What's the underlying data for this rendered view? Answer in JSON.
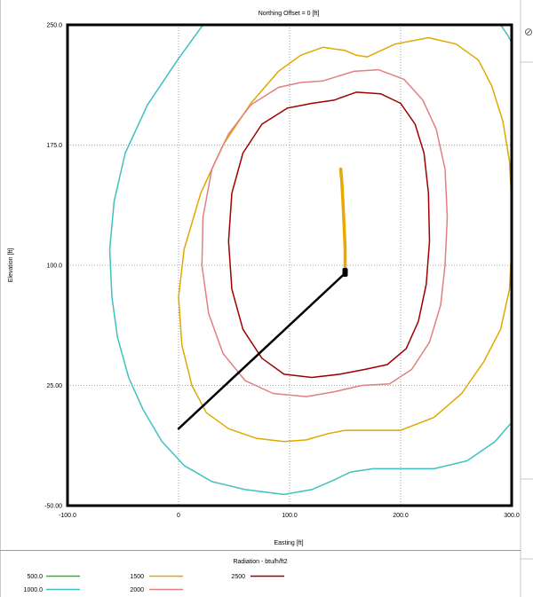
{
  "chart_data": {
    "type": "line",
    "title": "Northing Offset = 0 [ft]",
    "xlabel": "Easting [ft]",
    "ylabel": "Elevation [ft]",
    "xlim": [
      -100,
      300
    ],
    "ylim": [
      -50,
      250
    ],
    "x_ticks": [
      "-100.0",
      "0",
      "100.0",
      "200.0",
      "300.0"
    ],
    "y_ticks": [
      "250.0",
      "175.0",
      "100.0",
      "25.00",
      "-50.00"
    ],
    "x_tick_values": [
      -100,
      0,
      100,
      200,
      300
    ],
    "y_tick_values": [
      250,
      175,
      100,
      25,
      -50
    ],
    "grid": true,
    "legend": {
      "title": "Radiation - btu/h/ft2",
      "entries": [
        {
          "label": "500.0",
          "color": "#2eb82e"
        },
        {
          "label": "1000.0",
          "color": "#40c0c0"
        },
        {
          "label": "1500",
          "color": "#e0a800"
        },
        {
          "label": "2000",
          "color": "#e08080"
        },
        {
          "label": "2500",
          "color": "#a00000"
        }
      ]
    },
    "series": [
      {
        "label": "1000.0",
        "color": "#40c0c0",
        "points": [
          [
            22,
            250
          ],
          [
            0,
            229
          ],
          [
            -28,
            200
          ],
          [
            -48,
            170
          ],
          [
            -58,
            140
          ],
          [
            -62,
            110
          ],
          [
            -60,
            80
          ],
          [
            -55,
            55
          ],
          [
            -45,
            30
          ],
          [
            -32,
            10
          ],
          [
            -15,
            -10
          ],
          [
            5,
            -25
          ],
          [
            30,
            -35
          ],
          [
            60,
            -40
          ],
          [
            95,
            -43
          ],
          [
            120,
            -40
          ],
          [
            140,
            -34
          ],
          [
            155,
            -29
          ],
          [
            175,
            -27
          ],
          [
            200,
            -27
          ],
          [
            230,
            -27
          ],
          [
            260,
            -22
          ],
          [
            285,
            -10
          ],
          [
            300,
            2
          ]
        ]
      },
      {
        "label": "1000.0",
        "color": "#40c0c0",
        "points": [
          [
            290,
            250
          ],
          [
            296,
            244
          ],
          [
            300,
            239
          ]
        ]
      },
      {
        "label": "1500",
        "color": "#e0a800",
        "points": [
          [
            300,
            140
          ],
          [
            298,
            165
          ],
          [
            292,
            190
          ],
          [
            282,
            212
          ],
          [
            270,
            228
          ],
          [
            250,
            238
          ],
          [
            225,
            242
          ],
          [
            195,
            238
          ],
          [
            170,
            230
          ],
          [
            160,
            231
          ],
          [
            150,
            234
          ],
          [
            130,
            236
          ],
          [
            110,
            231
          ],
          [
            90,
            221
          ],
          [
            65,
            201
          ],
          [
            40,
            175
          ],
          [
            20,
            145
          ],
          [
            5,
            110
          ],
          [
            0,
            80
          ],
          [
            3,
            50
          ],
          [
            12,
            25
          ],
          [
            25,
            8
          ],
          [
            45,
            -2
          ],
          [
            70,
            -8
          ],
          [
            95,
            -10
          ],
          [
            115,
            -9
          ],
          [
            135,
            -5
          ],
          [
            150,
            -3
          ],
          [
            170,
            -3
          ],
          [
            200,
            -3
          ],
          [
            230,
            5
          ],
          [
            255,
            20
          ],
          [
            275,
            40
          ],
          [
            290,
            60
          ],
          [
            298,
            85
          ],
          [
            300,
            110
          ]
        ]
      },
      {
        "label": "2000",
        "color": "#e08080",
        "points": [
          [
            130,
            215
          ],
          [
            158,
            221
          ],
          [
            180,
            222
          ],
          [
            203,
            216
          ],
          [
            220,
            203
          ],
          [
            232,
            185
          ],
          [
            240,
            160
          ],
          [
            242,
            130
          ],
          [
            240,
            100
          ],
          [
            236,
            75
          ],
          [
            226,
            52
          ],
          [
            210,
            35
          ],
          [
            190,
            26
          ],
          [
            165,
            25
          ],
          [
            140,
            21
          ],
          [
            115,
            18
          ],
          [
            85,
            20
          ],
          [
            60,
            28
          ],
          [
            40,
            45
          ],
          [
            27,
            70
          ],
          [
            21,
            100
          ],
          [
            22,
            130
          ],
          [
            30,
            160
          ],
          [
            45,
            182
          ],
          [
            65,
            200
          ],
          [
            90,
            211
          ],
          [
            110,
            214
          ],
          [
            130,
            215
          ]
        ]
      },
      {
        "label": "2500",
        "color": "#a00000",
        "points": [
          [
            140,
            203
          ],
          [
            160,
            208
          ],
          [
            182,
            207
          ],
          [
            200,
            201
          ],
          [
            213,
            188
          ],
          [
            221,
            170
          ],
          [
            225,
            145
          ],
          [
            226,
            115
          ],
          [
            223,
            88
          ],
          [
            216,
            65
          ],
          [
            205,
            48
          ],
          [
            188,
            38
          ],
          [
            168,
            35
          ],
          [
            145,
            32
          ],
          [
            120,
            30
          ],
          [
            95,
            32
          ],
          [
            75,
            42
          ],
          [
            58,
            60
          ],
          [
            48,
            85
          ],
          [
            45,
            115
          ],
          [
            48,
            145
          ],
          [
            58,
            170
          ],
          [
            75,
            188
          ],
          [
            98,
            198
          ],
          [
            120,
            201
          ],
          [
            140,
            203
          ]
        ]
      },
      {
        "label": "",
        "color": "#000000",
        "points": [
          [
            0,
            -2
          ],
          [
            150,
            95
          ]
        ]
      },
      {
        "label": "",
        "color": "#e8a800",
        "points": [
          [
            150,
            95
          ],
          [
            150,
            110
          ],
          [
            149,
            125
          ],
          [
            148,
            140
          ],
          [
            147,
            152
          ],
          [
            146,
            160
          ]
        ]
      }
    ]
  }
}
